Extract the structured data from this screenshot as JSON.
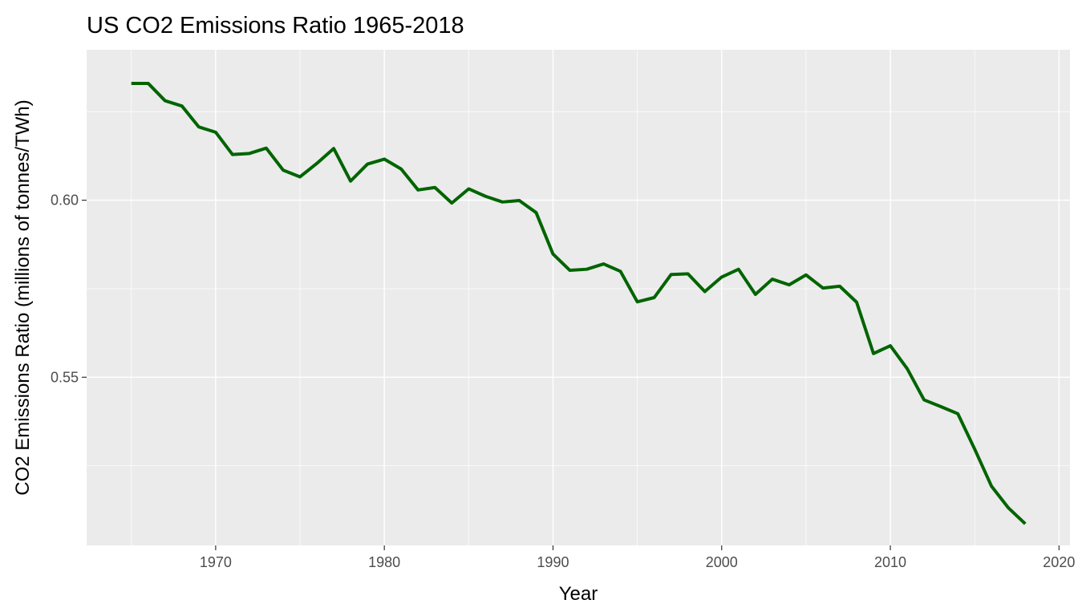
{
  "chart_data": {
    "type": "line",
    "title": "US CO2 Emissions Ratio 1965-2018",
    "xlabel": "Year",
    "ylabel": "CO2 Emissions Ratio (millions of tonnes/TWh)",
    "xlim": [
      1962.35,
      2020.65
    ],
    "ylim": [
      0.5025,
      0.6425
    ],
    "x_ticks": [
      1970,
      1980,
      1990,
      2000,
      2010,
      2020
    ],
    "x_tick_labels": [
      "1970",
      "1980",
      "1990",
      "2000",
      "2010",
      "2020"
    ],
    "y_ticks": [
      0.55,
      0.6
    ],
    "y_tick_labels": [
      "0.55",
      "0.60"
    ],
    "grid": true,
    "legend": "none",
    "colors": {
      "panel_background": "#ebebeb",
      "grid": "#ffffff",
      "line": "#006400"
    },
    "series": [
      {
        "x": [
          1965,
          1966,
          1967,
          1968,
          1969,
          1970,
          1971,
          1972,
          1973,
          1974,
          1975,
          1976,
          1977,
          1978,
          1979,
          1980,
          1981,
          1982,
          1983,
          1984,
          1985,
          1986,
          1987,
          1988,
          1989,
          1990,
          1991,
          1992,
          1993,
          1994,
          1995,
          1996,
          1997,
          1998,
          1999,
          2000,
          2001,
          2002,
          2003,
          2004,
          2005,
          2006,
          2007,
          2008,
          2009,
          2010,
          2011,
          2012,
          2013,
          2014,
          2015,
          2016,
          2017,
          2018
        ],
        "values": [
          0.633,
          0.633,
          0.6281,
          0.6266,
          0.6207,
          0.6192,
          0.6129,
          0.6132,
          0.6147,
          0.6085,
          0.6066,
          0.6104,
          0.6146,
          0.6054,
          0.6102,
          0.6116,
          0.6088,
          0.6029,
          0.6036,
          0.5992,
          0.6032,
          0.6011,
          0.5995,
          0.5999,
          0.5965,
          0.5848,
          0.5802,
          0.5805,
          0.582,
          0.5799,
          0.5713,
          0.5725,
          0.579,
          0.5792,
          0.5742,
          0.5783,
          0.5805,
          0.5734,
          0.5777,
          0.5761,
          0.5789,
          0.5752,
          0.5757,
          0.5712,
          0.5567,
          0.5589,
          0.5524,
          0.5436,
          0.5417,
          0.5397,
          0.5297,
          0.5192,
          0.5131,
          0.5086
        ]
      }
    ]
  }
}
